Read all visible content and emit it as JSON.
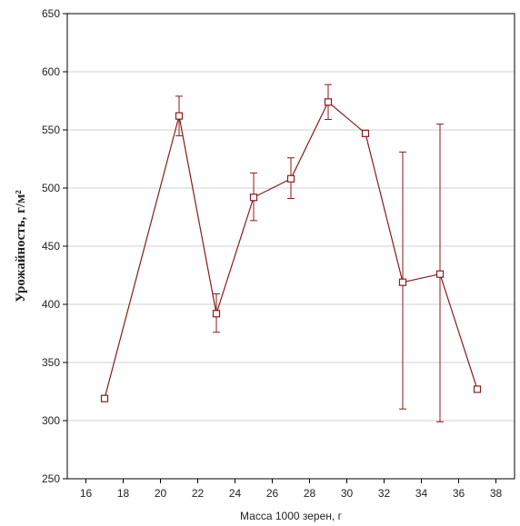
{
  "chart_data": {
    "type": "line",
    "title": "",
    "xlabel": "Масса 1000 зерен, г",
    "ylabel": "Урожайность, г/м²",
    "xlim": [
      15,
      39
    ],
    "ylim": [
      250,
      650
    ],
    "x_ticks": [
      16,
      18,
      20,
      22,
      24,
      26,
      28,
      30,
      32,
      34,
      36,
      38
    ],
    "y_ticks": [
      250,
      300,
      350,
      400,
      450,
      500,
      550,
      600,
      650
    ],
    "grid": "horizontal",
    "legend": "none",
    "colors": {
      "line": "#8b1a1a",
      "grid": "#d0d0d0",
      "frame": "#000000"
    },
    "marker": "square-open",
    "series": [
      {
        "x": [
          17,
          21,
          23,
          25,
          27,
          29,
          31,
          33,
          35,
          37
        ],
        "y": [
          319,
          562,
          392,
          492,
          508,
          574,
          547,
          419,
          426,
          327
        ],
        "error_low": [
          null,
          545,
          376,
          472,
          491,
          559,
          null,
          310,
          299,
          null
        ],
        "error_high": [
          null,
          579,
          409,
          513,
          526,
          589,
          null,
          531,
          555,
          null
        ]
      }
    ]
  }
}
